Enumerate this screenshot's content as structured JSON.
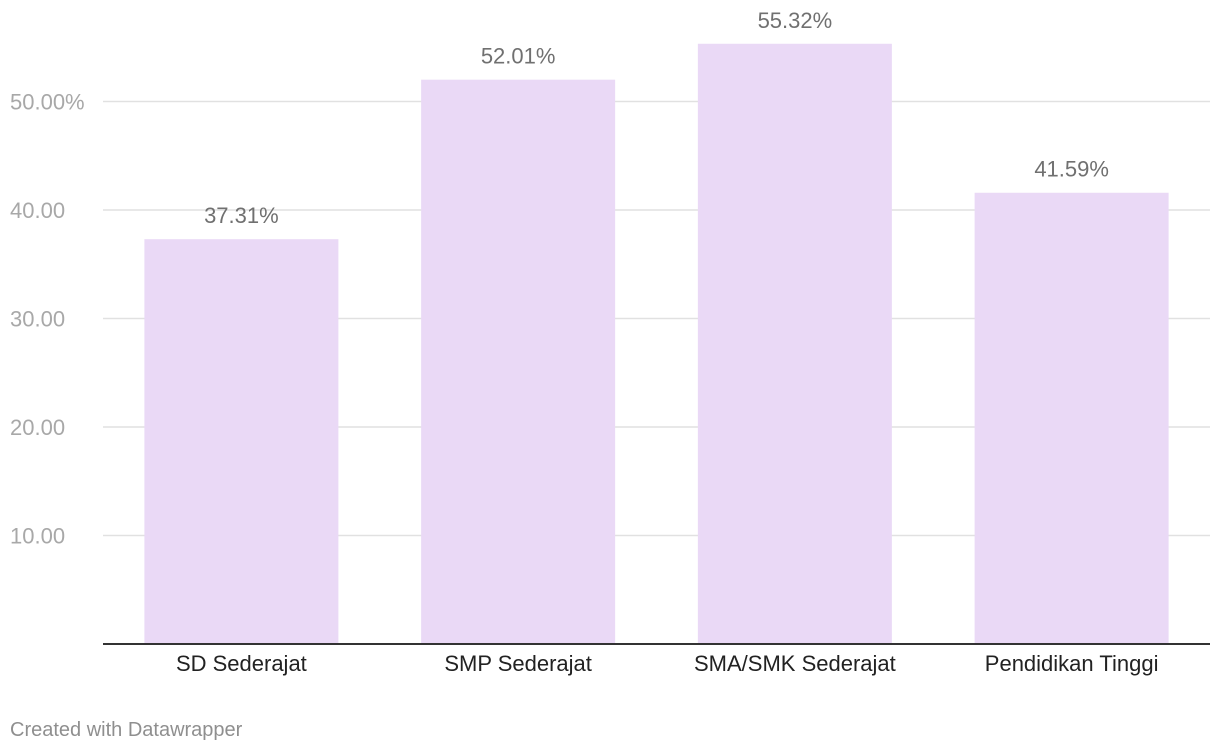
{
  "chart_data": {
    "type": "bar",
    "categories": [
      "SD Sederajat",
      "SMP Sederajat",
      "SMA/SMK Sederajat",
      "Pendidikan Tinggi"
    ],
    "values": [
      37.31,
      52.01,
      55.32,
      41.59
    ],
    "value_labels": [
      "37.31%",
      "52.01%",
      "55.32%",
      "41.59%"
    ],
    "title": "",
    "xlabel": "",
    "ylabel": "",
    "ylim": [
      0,
      57
    ],
    "y_ticks": [
      10,
      20,
      30,
      40,
      50
    ],
    "y_tick_labels": [
      "10.00",
      "20.00",
      "30.00",
      "40.00",
      "50.00%"
    ],
    "grid": true,
    "legend": "none"
  },
  "colors": {
    "bar": "#ead9f6"
  },
  "footer": {
    "credit": "Created with Datawrapper"
  }
}
